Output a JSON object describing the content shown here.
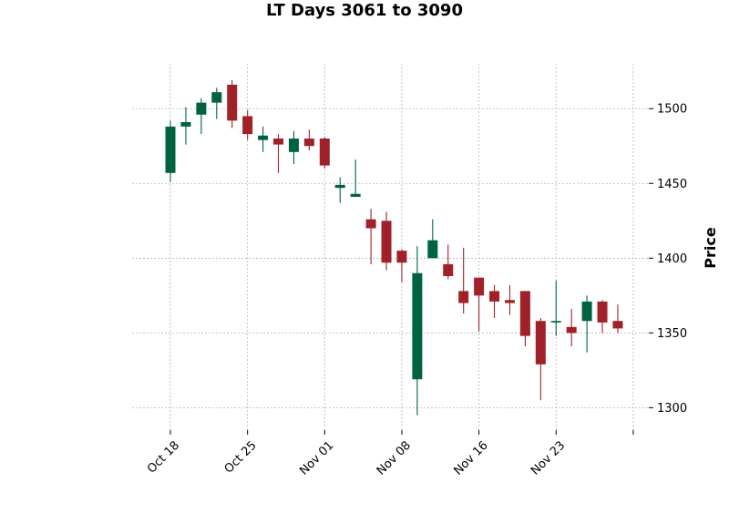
{
  "chart_data": {
    "type": "candlestick",
    "title": "LT Days 3061 to 3090",
    "ylabel": "Price",
    "xlabel": "",
    "ylim": [
      1285,
      1530
    ],
    "y_ticks": [
      1300,
      1350,
      1400,
      1450,
      1500
    ],
    "x_tick_labels": [
      "Oct 18",
      "Oct 25",
      "Nov 01",
      "Nov 08",
      "Nov 16",
      "Nov 23",
      ""
    ],
    "x_tick_positions": [
      0,
      5,
      10,
      15,
      20,
      25,
      30
    ],
    "grid": true,
    "y_axis_side": "right",
    "colors": {
      "up": "#006340",
      "down": "#a02128",
      "grid": "#b3b3b3"
    },
    "series": [
      {
        "o": 1457,
        "h": 1492,
        "l": 1451,
        "c": 1488
      },
      {
        "o": 1488,
        "h": 1501,
        "l": 1476,
        "c": 1491
      },
      {
        "o": 1496,
        "h": 1507,
        "l": 1483,
        "c": 1504
      },
      {
        "o": 1504,
        "h": 1514,
        "l": 1493,
        "c": 1511
      },
      {
        "o": 1516,
        "h": 1519,
        "l": 1487,
        "c": 1492
      },
      {
        "o": 1495,
        "h": 1499,
        "l": 1479,
        "c": 1483
      },
      {
        "o": 1479,
        "h": 1488,
        "l": 1471,
        "c": 1482
      },
      {
        "o": 1480,
        "h": 1483,
        "l": 1457,
        "c": 1476
      },
      {
        "o": 1471,
        "h": 1485,
        "l": 1463,
        "c": 1480
      },
      {
        "o": 1480,
        "h": 1486,
        "l": 1472,
        "c": 1475
      },
      {
        "o": 1480,
        "h": 1481,
        "l": 1460,
        "c": 1462
      },
      {
        "o": 1447,
        "h": 1454,
        "l": 1437,
        "c": 1449
      },
      {
        "o": 1441,
        "h": 1466,
        "l": 1441,
        "c": 1443
      },
      {
        "o": 1426,
        "h": 1433,
        "l": 1396,
        "c": 1420
      },
      {
        "o": 1425,
        "h": 1431,
        "l": 1392,
        "c": 1397
      },
      {
        "o": 1405,
        "h": 1406,
        "l": 1384,
        "c": 1397
      },
      {
        "o": 1319,
        "h": 1408,
        "l": 1295,
        "c": 1390
      },
      {
        "o": 1400,
        "h": 1426,
        "l": 1400,
        "c": 1412
      },
      {
        "o": 1396,
        "h": 1409,
        "l": 1386,
        "c": 1388
      },
      {
        "o": 1378,
        "h": 1407,
        "l": 1363,
        "c": 1370
      },
      {
        "o": 1387,
        "h": 1387,
        "l": 1351,
        "c": 1375
      },
      {
        "o": 1378,
        "h": 1382,
        "l": 1360,
        "c": 1371
      },
      {
        "o": 1372,
        "h": 1382,
        "l": 1362,
        "c": 1370
      },
      {
        "o": 1378,
        "h": 1378,
        "l": 1341,
        "c": 1348
      },
      {
        "o": 1358,
        "h": 1360,
        "l": 1305,
        "c": 1329
      },
      {
        "o": 1357,
        "h": 1385,
        "l": 1348,
        "c": 1358
      },
      {
        "o": 1354,
        "h": 1366,
        "l": 1341,
        "c": 1350
      },
      {
        "o": 1358,
        "h": 1375,
        "l": 1337,
        "c": 1371
      },
      {
        "o": 1371,
        "h": 1372,
        "l": 1350,
        "c": 1357
      },
      {
        "o": 1358,
        "h": 1369,
        "l": 1350,
        "c": 1353
      }
    ]
  }
}
